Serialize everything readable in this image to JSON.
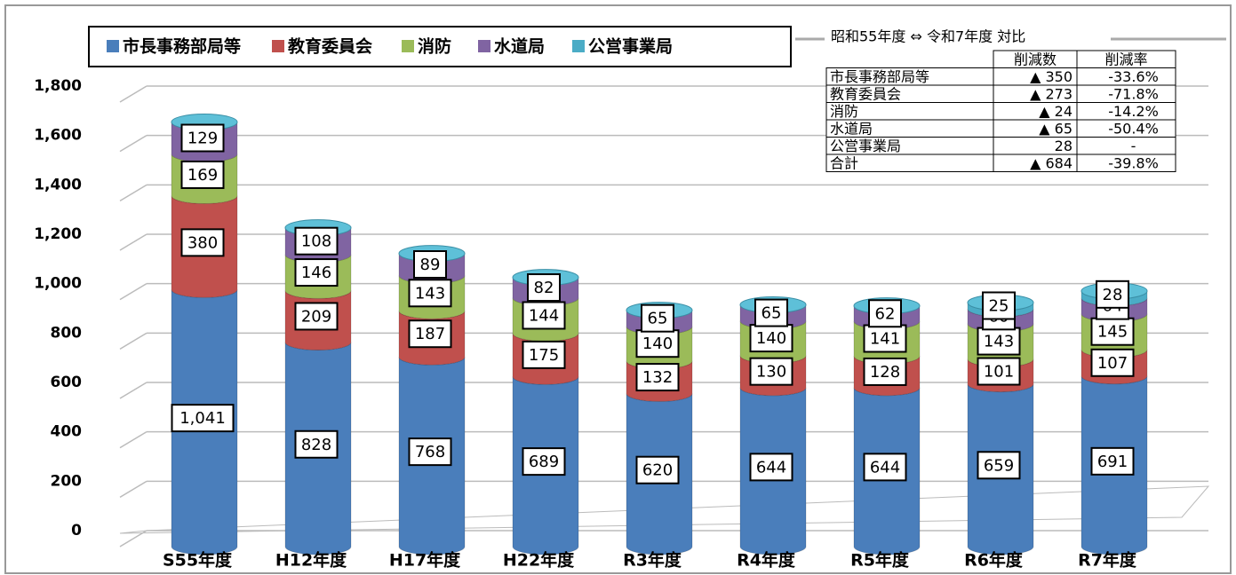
{
  "chart_data": {
    "type": "bar",
    "stacked": true,
    "categories": [
      "S55年度",
      "H12年度",
      "H17年度",
      "H22年度",
      "R3年度",
      "R4年度",
      "R5年度",
      "R6年度",
      "R7年度"
    ],
    "series": [
      {
        "name": "市長事務部局等",
        "color": "#4a7ebb",
        "values": [
          1041,
          828,
          768,
          689,
          620,
          644,
          644,
          659,
          691
        ],
        "value_labels": [
          "1,041",
          "828",
          "768",
          "689",
          "620",
          "644",
          "644",
          "659",
          "691"
        ]
      },
      {
        "name": "教育委員会",
        "color": "#c0504d",
        "values": [
          380,
          209,
          187,
          175,
          132,
          130,
          128,
          101,
          107
        ]
      },
      {
        "name": "消防",
        "color": "#9bbb59",
        "values": [
          169,
          146,
          143,
          144,
          140,
          140,
          141,
          143,
          145
        ]
      },
      {
        "name": "水道局",
        "color": "#8064a2",
        "values": [
          129,
          108,
          89,
          82,
          65,
          65,
          62,
          60,
          64
        ]
      },
      {
        "name": "公営事業局",
        "color": "#4bacc6",
        "values": [
          null,
          null,
          null,
          null,
          null,
          null,
          null,
          25,
          28
        ]
      }
    ],
    "ylim": [
      0,
      1800
    ],
    "yticks": [
      0,
      200,
      400,
      600,
      800,
      {
        "value": 1000,
        "label": "1,000"
      },
      {
        "value": 1200,
        "label": "1,200"
      },
      {
        "value": 1400,
        "label": "1,400"
      },
      {
        "value": 1600,
        "label": "1,600"
      },
      {
        "value": 1800,
        "label": "1,800"
      }
    ],
    "grid": true
  },
  "table": {
    "title": "昭和55年度 ⇔ 令和7年度 対比",
    "columns": [
      "削減数",
      "削減率"
    ],
    "rows": [
      [
        "市長事務部局等",
        "▲ 350",
        "-33.6%"
      ],
      [
        "教育委員会",
        "▲ 273",
        "-71.8%"
      ],
      [
        "消防",
        "▲ 24",
        "-14.2%"
      ],
      [
        "水道局",
        "▲ 65",
        "-50.4%"
      ],
      [
        "公営事業局",
        "28",
        "-"
      ],
      [
        "合計",
        "▲ 684",
        "-39.8%"
      ]
    ]
  }
}
